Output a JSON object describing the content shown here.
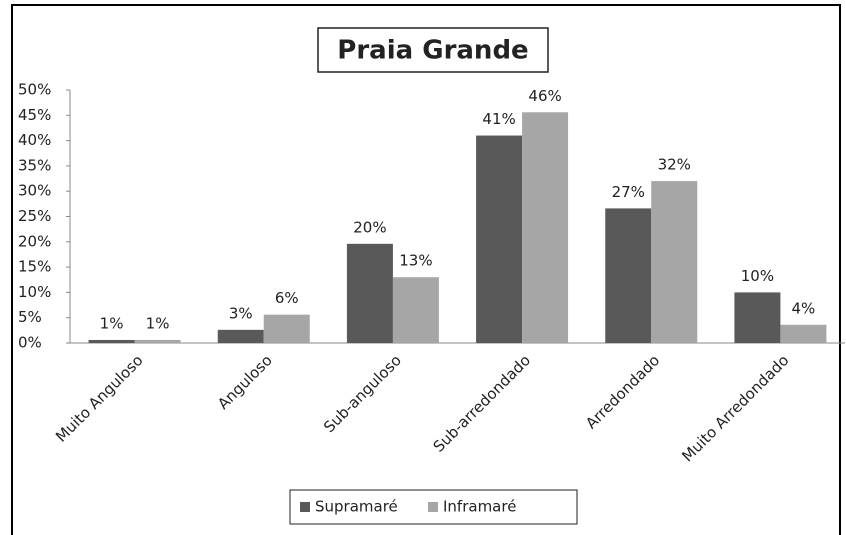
{
  "chart_data": {
    "type": "bar",
    "title": "Praia Grande",
    "categories": [
      "Muito Anguloso",
      "Anguloso",
      "Sub-anguloso",
      "Sub-arredondado",
      "Arredondado",
      "Muito Arredondado"
    ],
    "series": [
      {
        "name": "Supramaré",
        "color": "#595959",
        "values": [
          0.6,
          2.6,
          19.6,
          41,
          26.6,
          10
        ],
        "value_labels": [
          "1%",
          "3%",
          "20%",
          "41%",
          "27%",
          "10%"
        ]
      },
      {
        "name": "Inframaré",
        "color": "#a6a6a6",
        "values": [
          0.6,
          5.6,
          13,
          45.6,
          32,
          3.6
        ],
        "value_labels": [
          "1%",
          "6%",
          "13%",
          "46%",
          "32%",
          "4%"
        ]
      }
    ],
    "ylim": [
      0,
      50
    ],
    "yticks": [
      {
        "value": 0,
        "label": "0%"
      },
      {
        "value": 5,
        "label": "5%"
      },
      {
        "value": 10,
        "label": "10%"
      },
      {
        "value": 15,
        "label": "15%"
      },
      {
        "value": 20,
        "label": "20%"
      },
      {
        "value": 25,
        "label": "25%"
      },
      {
        "value": 30,
        "label": "30%"
      },
      {
        "value": 35,
        "label": "35%"
      },
      {
        "value": 40,
        "label": "40%"
      },
      {
        "value": 45,
        "label": "45%"
      },
      {
        "value": 50,
        "label": "50%"
      }
    ],
    "legend": "bottom"
  }
}
